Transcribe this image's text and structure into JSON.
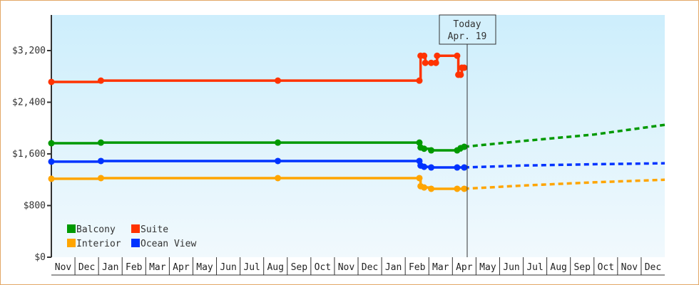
{
  "chart_data": {
    "type": "line",
    "title": "",
    "xlabel": "",
    "ylabel": "",
    "ylim": [
      0,
      3600
    ],
    "y_ticks": [
      {
        "value": 0,
        "label": "$0"
      },
      {
        "value": 800,
        "label": "$800"
      },
      {
        "value": 1600,
        "label": "$1,600"
      },
      {
        "value": 2400,
        "label": "$2,400"
      },
      {
        "value": 3200,
        "label": "$3,200"
      }
    ],
    "x_months": [
      "Nov",
      "Dec",
      "Jan",
      "Feb",
      "Mar",
      "Apr",
      "May",
      "Jun",
      "Jul",
      "Aug",
      "Sep",
      "Oct",
      "Nov",
      "Dec",
      "Jan",
      "Feb",
      "Mar",
      "Apr",
      "May",
      "Jun",
      "Jul",
      "Aug",
      "Sep",
      "Oct",
      "Nov",
      "Dec"
    ],
    "grid": false,
    "legend_position": "bottom-left inside",
    "today_marker": {
      "line1": "Today",
      "line2": "Apr. 19",
      "x_month_index": 17.5
    },
    "series": [
      {
        "name": "Balcony",
        "color": "#009900",
        "points": [
          [
            0,
            1765
          ],
          [
            2.1,
            1775
          ],
          [
            9.6,
            1775
          ],
          [
            15.6,
            1775
          ],
          [
            15.65,
            1700
          ],
          [
            15.8,
            1680
          ],
          [
            16.1,
            1655
          ],
          [
            17.2,
            1655
          ],
          [
            17.35,
            1690
          ],
          [
            17.5,
            1710
          ]
        ],
        "forecast": [
          [
            17.5,
            1710
          ],
          [
            20,
            1800
          ],
          [
            23,
            1900
          ],
          [
            26,
            2050
          ]
        ]
      },
      {
        "name": "Suite",
        "color": "#ff3300",
        "points": [
          [
            0,
            2715
          ],
          [
            2.1,
            2735
          ],
          [
            9.6,
            2735
          ],
          [
            15.6,
            2735
          ],
          [
            15.65,
            3120
          ],
          [
            15.8,
            3120
          ],
          [
            15.85,
            3010
          ],
          [
            16.1,
            3010
          ],
          [
            16.3,
            3010
          ],
          [
            16.35,
            3120
          ],
          [
            17.2,
            3120
          ],
          [
            17.25,
            2825
          ],
          [
            17.35,
            2825
          ],
          [
            17.4,
            2935
          ],
          [
            17.5,
            2935
          ]
        ],
        "forecast": []
      },
      {
        "name": "Interior",
        "color": "#ffa500",
        "points": [
          [
            0,
            1215
          ],
          [
            2.1,
            1225
          ],
          [
            9.6,
            1225
          ],
          [
            15.6,
            1225
          ],
          [
            15.65,
            1100
          ],
          [
            15.8,
            1080
          ],
          [
            16.1,
            1060
          ],
          [
            17.2,
            1060
          ],
          [
            17.5,
            1060
          ]
        ],
        "forecast": [
          [
            17.5,
            1060
          ],
          [
            20,
            1110
          ],
          [
            23,
            1160
          ],
          [
            26,
            1200
          ]
        ]
      },
      {
        "name": "Ocean View",
        "color": "#0033ff",
        "points": [
          [
            0,
            1480
          ],
          [
            2.1,
            1490
          ],
          [
            9.6,
            1490
          ],
          [
            15.6,
            1490
          ],
          [
            15.65,
            1420
          ],
          [
            15.8,
            1400
          ],
          [
            16.1,
            1390
          ],
          [
            17.2,
            1390
          ],
          [
            17.5,
            1390
          ]
        ],
        "forecast": [
          [
            17.5,
            1390
          ],
          [
            20,
            1420
          ],
          [
            23,
            1440
          ],
          [
            26,
            1455
          ]
        ]
      }
    ]
  },
  "legend": [
    {
      "label": "Balcony",
      "color": "#009900"
    },
    {
      "label": "Suite",
      "color": "#ff3300"
    },
    {
      "label": "Interior",
      "color": "#ffa500"
    },
    {
      "label": "Ocean View",
      "color": "#0033ff"
    }
  ]
}
